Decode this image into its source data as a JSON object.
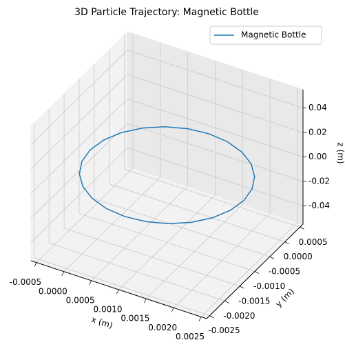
{
  "chart_data": {
    "type": "line3d",
    "title": "3D Particle Trajectory: Magnetic Bottle",
    "xlabel": "x (m)",
    "ylabel": "y (m)",
    "zlabel": "z (m)",
    "xlim": [
      -0.0006,
      0.0026
    ],
    "ylim": [
      -0.0026,
      0.0006
    ],
    "zlim": [
      -0.055,
      0.055
    ],
    "xticks": [
      -0.0005,
      {
        "value": 0,
        "label": "0.0000"
      },
      0.0005,
      {
        "value": 0.001,
        "label": "0.0010"
      },
      0.0015,
      {
        "value": 0.002,
        "label": "0.0020"
      },
      0.0025
    ],
    "yticks": [
      -0.0025,
      {
        "value": -0.002,
        "label": "-0.0020"
      },
      -0.0015,
      {
        "value": -0.001,
        "label": "-0.0010"
      },
      -0.0005,
      {
        "value": 0,
        "label": "0.0000"
      },
      0.0005
    ],
    "zticks": [
      -0.04,
      -0.02,
      {
        "value": 0,
        "label": "0.00"
      },
      0.02,
      0.04
    ],
    "grid": true,
    "legend": "upper right",
    "series": [
      {
        "name": "Magnetic Bottle",
        "color": "#1f77b4",
        "x": [
          0.0024,
          0.002352,
          0.002212,
          0.00199,
          0.0017,
          0.001362,
          0.001,
          0.000638,
          0.0003,
          1e-05,
          -0.000212,
          -0.000352,
          -0.0004,
          -0.000352,
          -0.000212,
          1e-05,
          0.0003,
          0.000638,
          0.001,
          0.001362,
          0.0017,
          0.00199,
          0.002212,
          0.002352,
          0.0024
        ],
        "y": [
          -0.001,
          -0.000638,
          -0.0003,
          -1e-05,
          0.000212,
          0.000352,
          0.0004,
          0.000352,
          0.000212,
          -1e-05,
          -0.0003,
          -0.000638,
          -0.001,
          -0.001362,
          -0.0017,
          -0.00199,
          -0.002212,
          -0.002352,
          -0.0024,
          -0.002352,
          -0.002212,
          -0.00199,
          -0.0017,
          -0.001362,
          -0.001
        ],
        "z": [
          0,
          0,
          0,
          0,
          0,
          0,
          0,
          0,
          0,
          0,
          0,
          0,
          0,
          0,
          0,
          0,
          0,
          0,
          0,
          0,
          0,
          0,
          0,
          0,
          0
        ]
      }
    ]
  }
}
